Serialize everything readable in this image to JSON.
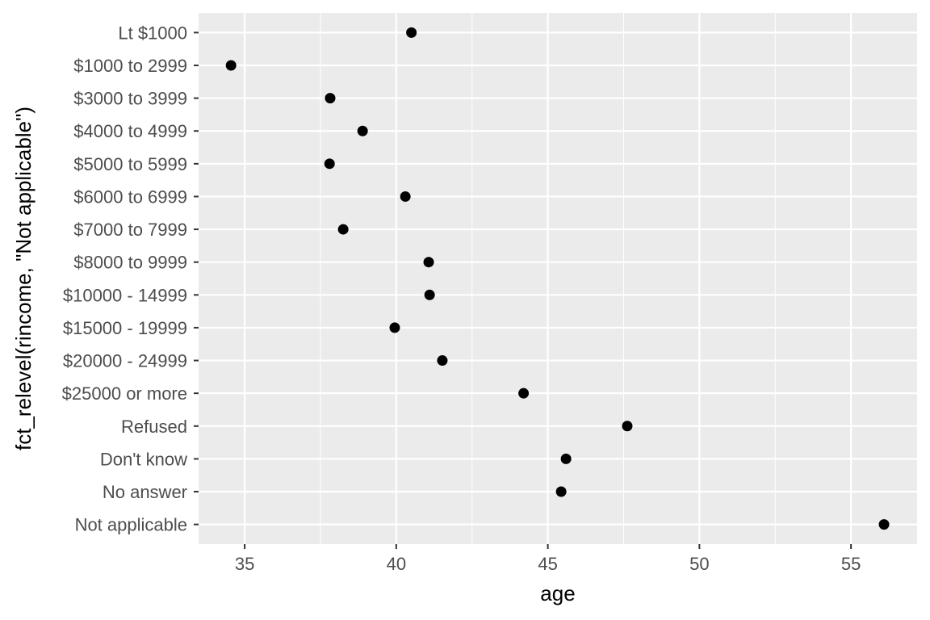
{
  "chart_data": {
    "type": "dot",
    "xlabel": "age",
    "ylabel": "fct_relevel(rincome, \"Not applicable\")",
    "categories": [
      "Lt $1000",
      "$1000 to 2999",
      "$3000 to 3999",
      "$4000 to 4999",
      "$5000 to 5999",
      "$6000 to 6999",
      "$7000 to 7999",
      "$8000 to 9999",
      "$10000 - 14999",
      "$15000 - 19999",
      "$20000 - 24999",
      "$25000 or more",
      "Refused",
      "Don't know",
      "No answer",
      "Not applicable"
    ],
    "values": [
      40.5,
      34.55,
      37.82,
      38.89,
      37.8,
      40.3,
      38.25,
      41.07,
      41.1,
      39.95,
      41.52,
      44.2,
      47.62,
      45.6,
      45.44,
      56.09
    ],
    "color": "#000000",
    "xlim": [
      33.48,
      57.18
    ],
    "xticks": [
      35,
      40,
      45,
      50,
      55
    ],
    "grid": true,
    "minor_grid": true
  }
}
